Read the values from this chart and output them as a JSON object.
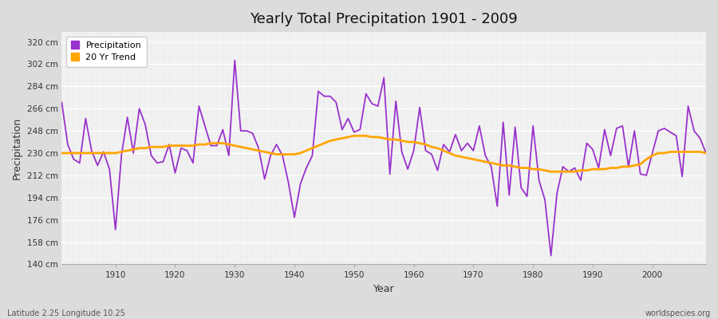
{
  "title": "Yearly Total Precipitation 1901 - 2009",
  "xlabel": "Year",
  "ylabel": "Precipitation",
  "subtitle_left": "Latitude 2.25 Longitude 10.25",
  "subtitle_right": "worldspecies.org",
  "ylim": [
    140,
    328
  ],
  "yticks": [
    140,
    158,
    176,
    194,
    212,
    230,
    248,
    266,
    284,
    302,
    320
  ],
  "ytick_labels": [
    "140 cm",
    "158 cm",
    "176 cm",
    "194 cm",
    "212 cm",
    "230 cm",
    "248 cm",
    "266 cm",
    "284 cm",
    "302 cm",
    "320 cm"
  ],
  "years": [
    1901,
    1902,
    1903,
    1904,
    1905,
    1906,
    1907,
    1908,
    1909,
    1910,
    1911,
    1912,
    1913,
    1914,
    1915,
    1916,
    1917,
    1918,
    1919,
    1920,
    1921,
    1922,
    1923,
    1924,
    1925,
    1926,
    1927,
    1928,
    1929,
    1930,
    1931,
    1932,
    1933,
    1934,
    1935,
    1936,
    1937,
    1938,
    1939,
    1940,
    1941,
    1942,
    1943,
    1944,
    1945,
    1946,
    1947,
    1948,
    1949,
    1950,
    1951,
    1952,
    1953,
    1954,
    1955,
    1956,
    1957,
    1958,
    1959,
    1960,
    1961,
    1962,
    1963,
    1964,
    1965,
    1966,
    1967,
    1968,
    1969,
    1970,
    1971,
    1972,
    1973,
    1974,
    1975,
    1976,
    1977,
    1978,
    1979,
    1980,
    1981,
    1982,
    1983,
    1984,
    1985,
    1986,
    1987,
    1988,
    1989,
    1990,
    1991,
    1992,
    1993,
    1994,
    1995,
    1996,
    1997,
    1998,
    1999,
    2000,
    2001,
    2002,
    2003,
    2004,
    2005,
    2006,
    2007,
    2008,
    2009
  ],
  "precipitation": [
    271,
    237,
    225,
    222,
    258,
    232,
    220,
    231,
    217,
    168,
    228,
    259,
    230,
    266,
    253,
    228,
    222,
    223,
    237,
    214,
    234,
    232,
    222,
    268,
    252,
    236,
    236,
    249,
    228,
    305,
    248,
    248,
    246,
    234,
    209,
    228,
    237,
    228,
    206,
    178,
    205,
    218,
    228,
    280,
    276,
    276,
    271,
    249,
    258,
    247,
    249,
    278,
    270,
    268,
    291,
    213,
    272,
    231,
    217,
    232,
    267,
    232,
    229,
    216,
    237,
    231,
    245,
    232,
    238,
    232,
    252,
    228,
    219,
    187,
    255,
    196,
    251,
    202,
    195,
    252,
    208,
    192,
    147,
    197,
    219,
    215,
    218,
    208,
    238,
    233,
    218,
    249,
    228,
    250,
    252,
    219,
    248,
    213,
    212,
    230,
    248,
    250,
    247,
    244,
    211,
    268,
    248,
    242,
    230
  ],
  "trend_years": [
    1901,
    1902,
    1903,
    1904,
    1905,
    1906,
    1907,
    1908,
    1909,
    1910,
    1911,
    1912,
    1913,
    1914,
    1915,
    1916,
    1917,
    1918,
    1919,
    1920,
    1921,
    1922,
    1923,
    1924,
    1925,
    1926,
    1927,
    1928,
    1929,
    1930,
    1931,
    1932,
    1933,
    1934,
    1935,
    1936,
    1937,
    1938,
    1939,
    1940,
    1941,
    1942,
    1943,
    1944,
    1945,
    1946,
    1947,
    1948,
    1949,
    1950,
    1951,
    1952,
    1953,
    1954,
    1955,
    1956,
    1957,
    1958,
    1959,
    1960,
    1961,
    1962,
    1963,
    1964,
    1965,
    1966,
    1967,
    1968,
    1969,
    1970,
    1971,
    1972,
    1973,
    1974,
    1975,
    1976,
    1977,
    1978,
    1979,
    1980,
    1981,
    1982,
    1983,
    1984,
    1985,
    1986,
    1987,
    1988,
    1989,
    1990,
    1991,
    1992,
    1993,
    1994,
    1995,
    1996,
    1997,
    1998,
    1999,
    2000,
    2001,
    2002,
    2003,
    2004,
    2005,
    2006,
    2007,
    2008,
    2009
  ],
  "trend": [
    230,
    230,
    230,
    230,
    230,
    230,
    230,
    230,
    230,
    230,
    231,
    232,
    233,
    234,
    234,
    235,
    235,
    235,
    236,
    236,
    236,
    236,
    236,
    237,
    237,
    238,
    238,
    238,
    237,
    236,
    235,
    234,
    233,
    232,
    231,
    230,
    229,
    229,
    229,
    229,
    230,
    232,
    234,
    236,
    238,
    240,
    241,
    242,
    243,
    244,
    244,
    244,
    243,
    243,
    242,
    241,
    241,
    240,
    239,
    239,
    238,
    237,
    235,
    234,
    232,
    230,
    228,
    227,
    226,
    225,
    224,
    223,
    222,
    221,
    220,
    220,
    219,
    218,
    218,
    217,
    217,
    216,
    215,
    215,
    215,
    215,
    215,
    216,
    216,
    217,
    217,
    217,
    218,
    218,
    219,
    219,
    220,
    221,
    225,
    228,
    230,
    230,
    231,
    231,
    231,
    231,
    231,
    231,
    230
  ],
  "precip_color": "#9932CC",
  "trend_color": "#FFA500",
  "fig_bg_color": "#DCDCDC",
  "plot_bg_color": "#F5F5F5",
  "grid_color": "#FFFFFF",
  "grid_minor_color": "#E8E8E8",
  "legend_bg": "#FFFFFF",
  "spine_color": "#AAAAAA",
  "tick_color": "#555555",
  "label_color": "#333333"
}
